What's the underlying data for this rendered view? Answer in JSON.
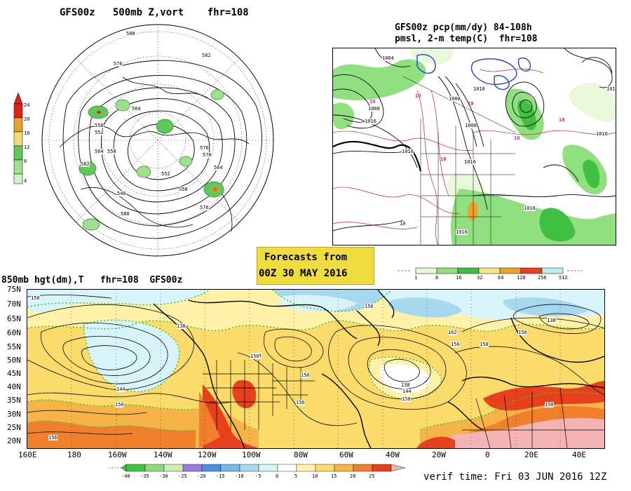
{
  "panels": {
    "polar": {
      "title": "GFS00z   500mb Z,vort    fhr=108",
      "contour_labels": [
        "588",
        "582",
        "576",
        "564",
        "558",
        "552",
        "576",
        "564",
        "558",
        "570",
        "582",
        "552",
        "564",
        "558",
        "546",
        "588",
        "576"
      ],
      "colorbar": {
        "labels": [
          "24",
          "20",
          "16",
          "12",
          "8",
          "4"
        ],
        "colors": [
          "#d8241c",
          "#e8a030",
          "#f5d87c",
          "#5fc85a",
          "#9ee08e",
          "#d2f2c6"
        ]
      }
    },
    "precip": {
      "title_line1": "GFS00z pcp(mm/dy) 84-108h",
      "title_line2": "pmsl, 2-m temp(C)  fhr=108",
      "isobar_labels": [
        "1004",
        "1016",
        "1008",
        "1016",
        "1008",
        "1016",
        "1008",
        "1016",
        "1016",
        "1016",
        "1016",
        "1016"
      ],
      "temp_labels": [
        "10",
        "19",
        "10",
        "10",
        "10",
        "10",
        "10"
      ],
      "colorbar": {
        "labels": [
          "1",
          "8",
          "16",
          "32",
          "64",
          "128",
          "256",
          "512"
        ],
        "colors": [
          "#e8f8d8",
          "#90e080",
          "#40c040",
          "#f5e38a",
          "#f0a030",
          "#e84020",
          "#b8f0f0"
        ]
      }
    },
    "forecast_box": {
      "line1": "Forecasts from",
      "line2": "00Z 30 MAY 2016",
      "background": "#f0dc3c"
    },
    "hgt850": {
      "title": "850mb hgt(dm),T   fhr=108  GFS00z",
      "lat_labels": [
        "75N",
        "70N",
        "65N",
        "60N",
        "55N",
        "50N",
        "45N",
        "40N",
        "35N",
        "30N",
        "25N",
        "20N"
      ],
      "lon_labels": [
        "160E",
        "180",
        "160W",
        "140W",
        "120W",
        "100W",
        "80W",
        "60W",
        "40W",
        "20W",
        "0",
        "20E",
        "40E"
      ],
      "contour_labels": [
        "150",
        "138",
        "144",
        "150",
        "156",
        "144",
        "150",
        "156",
        "162",
        "156",
        "150",
        "138",
        "144",
        "150",
        "156",
        "150",
        "150",
        "138",
        "156"
      ],
      "colorbar": {
        "labels": [
          "-40",
          "-35",
          "-30",
          "-25",
          "-20",
          "-15",
          "-10",
          "-5",
          "0",
          "5",
          "10",
          "15",
          "20",
          "25"
        ],
        "colors": [
          "#3cc83c",
          "#8cdc7c",
          "#c8f0b4",
          "#9a7be0",
          "#4a90e0",
          "#78b8e8",
          "#a8d8f0",
          "#d8f4f8",
          "#ffffff",
          "#fff2a8",
          "#fbdc6a",
          "#f6b448",
          "#f0802c",
          "#e8401c",
          "#f5b4b4"
        ]
      }
    },
    "verif": "verif time: Fri 03 JUN 2016 12Z"
  }
}
